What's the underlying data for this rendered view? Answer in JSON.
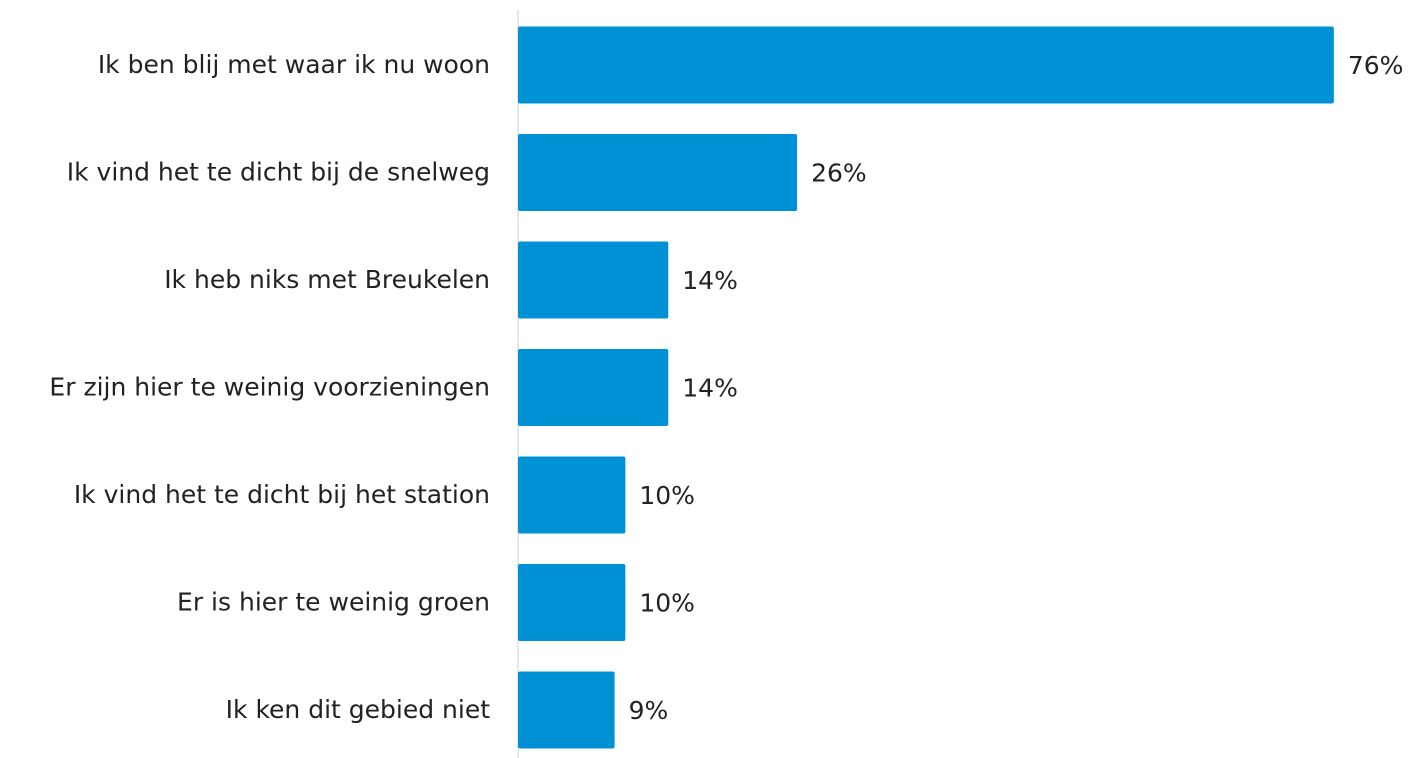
{
  "chart_data": {
    "type": "bar",
    "orientation": "horizontal",
    "categories": [
      "Ik ben blij met waar ik nu woon",
      "Ik vind het te dicht bij de snelweg",
      "Ik heb niks met Breukelen",
      "Er zijn hier te weinig voorzieningen",
      "Ik vind het te dicht bij het station",
      "Er is hier te weinig groen",
      "Ik ken dit gebied niet"
    ],
    "values": [
      76,
      26,
      14,
      14,
      10,
      10,
      9
    ],
    "value_labels": [
      "76%",
      "26%",
      "14%",
      "14%",
      "10%",
      "10%",
      "9%"
    ],
    "color": "#0091d5",
    "xlim": [
      0,
      83
    ]
  }
}
